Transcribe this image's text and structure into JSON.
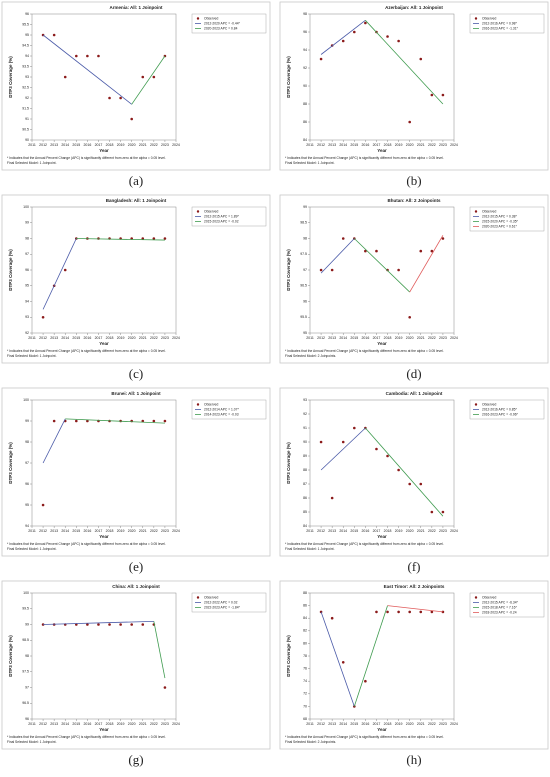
{
  "chart_data": [
    {
      "type": "scatter",
      "panel_label": "(a)",
      "title": "Armenia: All: 1 Joinpoint",
      "x_label": "Year",
      "y_label": "DTP3 Coverage (%)",
      "xlim": [
        2011,
        2024
      ],
      "xticks": [
        2011,
        2012,
        2013,
        2014,
        2015,
        2016,
        2017,
        2018,
        2019,
        2020,
        2021,
        2022,
        2023,
        2024
      ],
      "ylim": [
        90,
        96
      ],
      "yticks": [
        90,
        90.5,
        91,
        91.5,
        92,
        92.5,
        93,
        93.5,
        94,
        94.5,
        95,
        95.5,
        96
      ],
      "footnote": [
        "* Indicates that the Annual Percent Change (APC) is significantly different from zero at the alpha = 0.05 level.",
        "Final Selected Model: 1 Joinpoint."
      ],
      "series": [
        {
          "name": "Observed",
          "mode": "markers",
          "color": "#8b1a1a",
          "x": [
            2012,
            2013,
            2014,
            2015,
            2016,
            2017,
            2018,
            2019,
            2020,
            2021,
            2022,
            2023
          ],
          "values": [
            95,
            95,
            93,
            94,
            94,
            94,
            92,
            92,
            91,
            93,
            93,
            94
          ]
        },
        {
          "name": "2012-2020 APC = -0.44*",
          "mode": "lines",
          "color": "#4a5aa8",
          "x": [
            2012,
            2020
          ],
          "values": [
            95,
            91.7
          ]
        },
        {
          "name": "2020-2023 APC = 0.84",
          "mode": "lines",
          "color": "#3f9b4f",
          "x": [
            2020,
            2023
          ],
          "values": [
            91.7,
            94
          ]
        }
      ]
    },
    {
      "type": "scatter",
      "panel_label": "(b)",
      "title": "Azerbaijan: All: 1 Joinpoint",
      "x_label": "Year",
      "y_label": "DTP3 Coverage (%)",
      "xlim": [
        2011,
        2024
      ],
      "xticks": [
        2011,
        2012,
        2013,
        2014,
        2015,
        2016,
        2017,
        2018,
        2019,
        2020,
        2021,
        2022,
        2023,
        2024
      ],
      "ylim": [
        84,
        98
      ],
      "yticks": [
        84,
        86,
        88,
        90,
        92,
        94,
        96,
        98
      ],
      "footnote": [
        "* Indicates that the Annual Percent Change (APC) is significantly different from zero at the alpha = 0.05 level.",
        "Final Selected Model: 1 Joinpoint."
      ],
      "series": [
        {
          "name": "Observed",
          "mode": "markers",
          "color": "#8b1a1a",
          "x": [
            2012,
            2013,
            2014,
            2015,
            2016,
            2017,
            2018,
            2019,
            2020,
            2021,
            2022,
            2023
          ],
          "values": [
            93,
            94.5,
            95,
            96,
            97,
            96,
            95.5,
            95,
            86,
            93,
            89,
            89
          ]
        },
        {
          "name": "2012-2016 APC = 0.98*",
          "mode": "lines",
          "color": "#4a5aa8",
          "x": [
            2012,
            2016
          ],
          "values": [
            93.5,
            97.3
          ]
        },
        {
          "name": "2016-2023 APC = -1.31*",
          "mode": "lines",
          "color": "#3f9b4f",
          "x": [
            2016,
            2023
          ],
          "values": [
            97.3,
            88
          ]
        }
      ]
    },
    {
      "type": "scatter",
      "panel_label": "(c)",
      "title": "Bangladesh: All: 1 Joinpoint",
      "x_label": "Year",
      "y_label": "DTP3 Coverage (%)",
      "xlim": [
        2011,
        2024
      ],
      "xticks": [
        2011,
        2012,
        2013,
        2014,
        2015,
        2016,
        2017,
        2018,
        2019,
        2020,
        2021,
        2022,
        2023,
        2024
      ],
      "ylim": [
        92,
        100
      ],
      "yticks": [
        92,
        93,
        94,
        95,
        96,
        97,
        98,
        99,
        100
      ],
      "footnote": [
        "* Indicates that the Annual Percent Change (APC) is significantly different from zero at the alpha = 0.05 level.",
        "Final Selected Model: 1 Joinpoint."
      ],
      "series": [
        {
          "name": "Observed",
          "mode": "markers",
          "color": "#8b1a1a",
          "x": [
            2012,
            2013,
            2014,
            2015,
            2016,
            2017,
            2018,
            2019,
            2020,
            2021,
            2022,
            2023
          ],
          "values": [
            93,
            95,
            96,
            98,
            98,
            98,
            98,
            98,
            98,
            98,
            98,
            98
          ]
        },
        {
          "name": "2012-2015 APC = 1.89*",
          "mode": "lines",
          "color": "#4a5aa8",
          "x": [
            2012,
            2015
          ],
          "values": [
            93.5,
            98
          ]
        },
        {
          "name": "2015-2023 APC = -0.02",
          "mode": "lines",
          "color": "#3f9b4f",
          "x": [
            2015,
            2023
          ],
          "values": [
            98,
            97.9
          ]
        }
      ]
    },
    {
      "type": "scatter",
      "panel_label": "(d)",
      "title": "Bhutan: All: 2 Joinpoints",
      "x_label": "Year",
      "y_label": "DTP3 Coverage (%)",
      "xlim": [
        2011,
        2024
      ],
      "xticks": [
        2011,
        2012,
        2013,
        2014,
        2015,
        2016,
        2017,
        2018,
        2019,
        2020,
        2021,
        2022,
        2023,
        2024
      ],
      "ylim": [
        95,
        99
      ],
      "yticks": [
        95,
        95.5,
        96,
        96.5,
        97,
        97.5,
        98,
        98.5,
        99
      ],
      "footnote": [
        "* Indicates that the Annual Percent Change (APC) is significantly different from zero at the alpha = 0.05 level.",
        "Final Selected Model: 2 Joinpoints."
      ],
      "series": [
        {
          "name": "Observed",
          "mode": "markers",
          "color": "#8b1a1a",
          "x": [
            2012,
            2013,
            2014,
            2015,
            2016,
            2017,
            2018,
            2019,
            2020,
            2021,
            2022,
            2023
          ],
          "values": [
            97,
            97,
            98,
            98,
            97.6,
            97.6,
            97,
            97,
            95.5,
            97.6,
            97.6,
            98
          ]
        },
        {
          "name": "2012-2015 APC = 0.38*",
          "mode": "lines",
          "color": "#4a5aa8",
          "x": [
            2012,
            2015
          ],
          "values": [
            96.9,
            98
          ]
        },
        {
          "name": "2015-2020 APC = -0.35*",
          "mode": "lines",
          "color": "#3f9b4f",
          "x": [
            2015,
            2020
          ],
          "values": [
            98,
            96.3
          ]
        },
        {
          "name": "2020-2023 APC = 0.61*",
          "mode": "lines",
          "color": "#e05a5a",
          "x": [
            2020,
            2023
          ],
          "values": [
            96.3,
            98.1
          ]
        }
      ]
    },
    {
      "type": "scatter",
      "panel_label": "(e)",
      "title": "Brunei: All: 1 Joinpoint",
      "x_label": "Year",
      "y_label": "DTP3 Coverage (%)",
      "xlim": [
        2011,
        2024
      ],
      "xticks": [
        2011,
        2012,
        2013,
        2014,
        2015,
        2016,
        2017,
        2018,
        2019,
        2020,
        2021,
        2022,
        2023,
        2024
      ],
      "ylim": [
        94,
        100
      ],
      "yticks": [
        94,
        95,
        96,
        97,
        98,
        99,
        100
      ],
      "footnote": [
        "* Indicates that the Annual Percent Change (APC) is significantly different from zero at the alpha = 0.05 level.",
        "Final Selected Model: 1 Joinpoint."
      ],
      "series": [
        {
          "name": "Observed",
          "mode": "markers",
          "color": "#8b1a1a",
          "x": [
            2012,
            2013,
            2014,
            2015,
            2016,
            2017,
            2018,
            2019,
            2020,
            2021,
            2022,
            2023
          ],
          "values": [
            95,
            99,
            99,
            99,
            99,
            99,
            99,
            99,
            99,
            99,
            99,
            99
          ]
        },
        {
          "name": "2012-2014 APC = 1.07*",
          "mode": "lines",
          "color": "#4a5aa8",
          "x": [
            2012,
            2014
          ],
          "values": [
            97,
            99.1
          ]
        },
        {
          "name": "2014-2023 APC = -0.03",
          "mode": "lines",
          "color": "#3f9b4f",
          "x": [
            2014,
            2023
          ],
          "values": [
            99.1,
            98.9
          ]
        }
      ]
    },
    {
      "type": "scatter",
      "panel_label": "(f)",
      "title": "Cambodia: All: 1 Joinpoint",
      "x_label": "Year",
      "y_label": "DTP3 Coverage (%)",
      "xlim": [
        2011,
        2024
      ],
      "xticks": [
        2011,
        2012,
        2013,
        2014,
        2015,
        2016,
        2017,
        2018,
        2019,
        2020,
        2021,
        2022,
        2023,
        2024
      ],
      "ylim": [
        84,
        93
      ],
      "yticks": [
        84,
        85,
        86,
        87,
        88,
        89,
        90,
        91,
        92,
        93
      ],
      "footnote": [
        "* Indicates that the Annual Percent Change (APC) is significantly different from zero at the alpha = 0.05 level.",
        "Final Selected Model: 1 Joinpoint."
      ],
      "series": [
        {
          "name": "Observed",
          "mode": "markers",
          "color": "#8b1a1a",
          "x": [
            2012,
            2013,
            2014,
            2015,
            2016,
            2017,
            2018,
            2019,
            2020,
            2021,
            2022,
            2023
          ],
          "values": [
            90,
            86,
            90,
            91,
            91,
            89.5,
            89,
            88,
            87,
            87,
            85,
            85
          ]
        },
        {
          "name": "2012-2016 APC = 0.85*",
          "mode": "lines",
          "color": "#4a5aa8",
          "x": [
            2012,
            2016
          ],
          "values": [
            88,
            91
          ]
        },
        {
          "name": "2016-2023 APC = -0.96*",
          "mode": "lines",
          "color": "#3f9b4f",
          "x": [
            2016,
            2023
          ],
          "values": [
            91,
            84.7
          ]
        }
      ]
    },
    {
      "type": "scatter",
      "panel_label": "(g)",
      "title": "China: All: 1 Joinpoint",
      "x_label": "Year",
      "y_label": "DTP3 Coverage (%)",
      "xlim": [
        2011,
        2024
      ],
      "xticks": [
        2011,
        2012,
        2013,
        2014,
        2015,
        2016,
        2017,
        2018,
        2019,
        2020,
        2021,
        2022,
        2023,
        2024
      ],
      "ylim": [
        96,
        100
      ],
      "yticks": [
        96,
        96.5,
        97,
        97.5,
        98,
        98.5,
        99,
        99.5,
        100
      ],
      "footnote": [
        "* Indicates that the Annual Percent Change (APC) is significantly different from zero at the alpha = 0.05 level.",
        "Final Selected Model: 1 Joinpoint."
      ],
      "series": [
        {
          "name": "Observed",
          "mode": "markers",
          "color": "#8b1a1a",
          "x": [
            2012,
            2013,
            2014,
            2015,
            2016,
            2017,
            2018,
            2019,
            2020,
            2021,
            2022,
            2023
          ],
          "values": [
            99,
            99,
            99,
            99,
            99,
            99,
            99,
            99,
            99,
            99,
            99,
            97
          ]
        },
        {
          "name": "2012-2022 APC = 0.02",
          "mode": "lines",
          "color": "#4a5aa8",
          "x": [
            2012,
            2022
          ],
          "values": [
            99,
            99.1
          ]
        },
        {
          "name": "2022-2023 APC = -1.84*",
          "mode": "lines",
          "color": "#3f9b4f",
          "x": [
            2022,
            2023
          ],
          "values": [
            99.1,
            97.3
          ]
        }
      ]
    },
    {
      "type": "scatter",
      "panel_label": "(h)",
      "title": "East Timor: All: 2 Joinpoints",
      "x_label": "Year",
      "y_label": "DTP3 Coverage (%)",
      "xlim": [
        2011,
        2024
      ],
      "xticks": [
        2011,
        2012,
        2013,
        2014,
        2015,
        2016,
        2017,
        2018,
        2019,
        2020,
        2021,
        2022,
        2023,
        2024
      ],
      "ylim": [
        68,
        88
      ],
      "yticks": [
        68,
        70,
        72,
        74,
        76,
        78,
        80,
        82,
        84,
        86,
        88
      ],
      "footnote": [
        "* Indicates that the Annual Percent Change (APC) is significantly different from zero at the alpha = 0.05 level.",
        "Final Selected Model: 2 Joinpoints."
      ],
      "series": [
        {
          "name": "Observed",
          "mode": "markers",
          "color": "#8b1a1a",
          "x": [
            2012,
            2013,
            2014,
            2015,
            2016,
            2017,
            2018,
            2019,
            2020,
            2021,
            2022,
            2023
          ],
          "values": [
            85,
            84,
            77,
            70,
            74,
            85,
            85,
            85,
            85,
            85,
            85,
            85
          ]
        },
        {
          "name": "2012-2015 APC = -6.34*",
          "mode": "lines",
          "color": "#4a5aa8",
          "x": [
            2012,
            2015
          ],
          "values": [
            85,
            70
          ]
        },
        {
          "name": "2015-2018 APC = 7.16*",
          "mode": "lines",
          "color": "#3f9b4f",
          "x": [
            2015,
            2018
          ],
          "values": [
            70,
            86
          ]
        },
        {
          "name": "2018-2023 APC = -0.24",
          "mode": "lines",
          "color": "#e05a5a",
          "x": [
            2018,
            2023
          ],
          "values": [
            86,
            85
          ]
        }
      ]
    }
  ]
}
